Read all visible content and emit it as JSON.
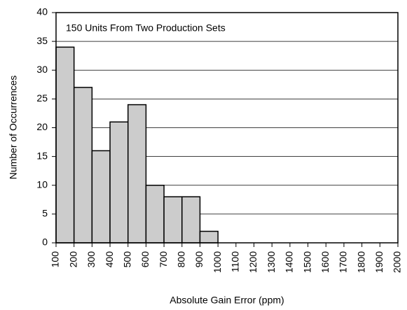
{
  "chart_data": {
    "type": "histogram",
    "annotation": "150 Units From Two Production Sets",
    "xlabel": "Absolute Gain Error (ppm)",
    "ylabel": "Number of Occurrences",
    "bins": [
      100,
      200,
      300,
      400,
      500,
      600,
      700,
      800,
      900,
      1000,
      1100,
      1200,
      1300,
      1400,
      1500,
      1600,
      1700,
      1800,
      1900,
      2000
    ],
    "values": [
      34,
      27,
      16,
      21,
      24,
      10,
      8,
      8,
      2,
      0,
      0,
      0,
      0,
      0,
      0,
      0,
      0,
      0,
      0
    ],
    "color": "#cccccc",
    "xlim": [
      100,
      2000
    ],
    "xticks": [
      100,
      200,
      300,
      400,
      500,
      600,
      700,
      800,
      900,
      1000,
      1100,
      1200,
      1300,
      1400,
      1500,
      1600,
      1700,
      1800,
      1900,
      2000
    ],
    "ylim": [
      0,
      40
    ],
    "yticks": [
      0,
      5,
      10,
      15,
      20,
      25,
      30,
      35,
      40
    ],
    "grid": true
  }
}
